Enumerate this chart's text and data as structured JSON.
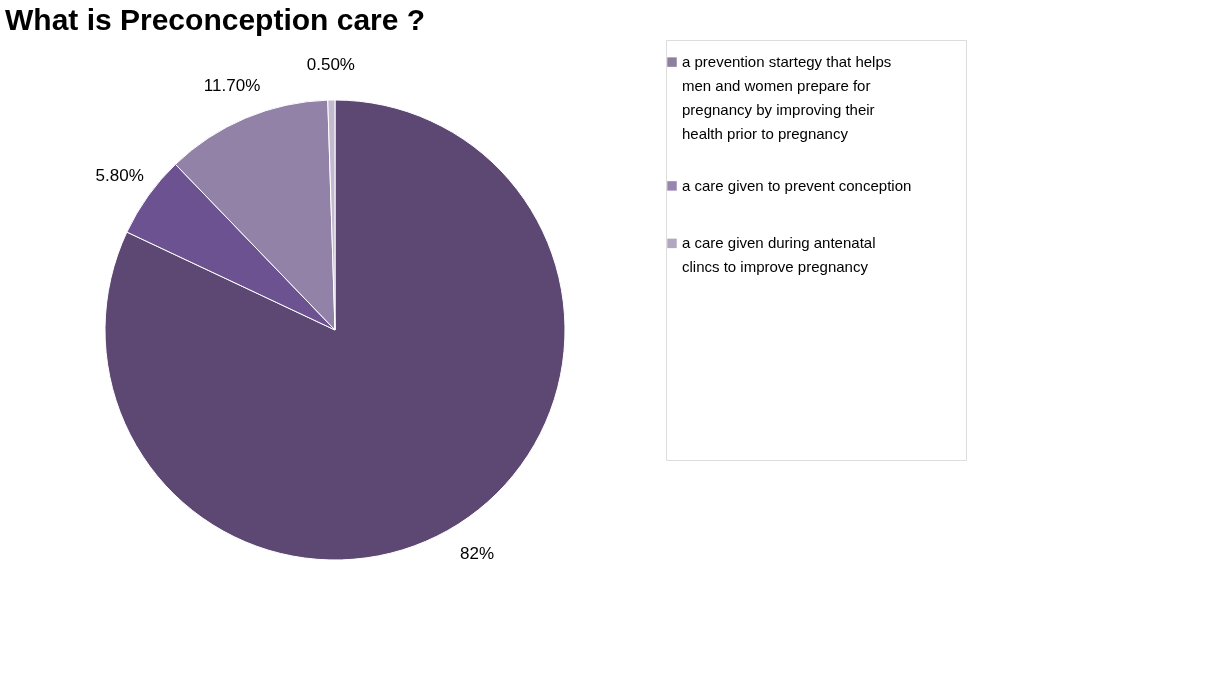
{
  "chart_data": {
    "type": "pie",
    "title": "What is Preconception care ?",
    "categories": [
      "a prevention startegy that helps men and women prepare for pregnancy by improving their health prior to pregnancy",
      "a care given to prevent conception",
      "a care given during antenatal clincs to improve pregnancy",
      null
    ],
    "values": [
      82,
      5.8,
      11.7,
      0.5
    ],
    "colors": [
      "#5d4874",
      "#6c5290",
      "#9282a8",
      "#c4bad0"
    ],
    "value_labels": [
      "82%",
      "5.80%",
      "11.70%",
      "0.50%"
    ],
    "legend": "right"
  }
}
